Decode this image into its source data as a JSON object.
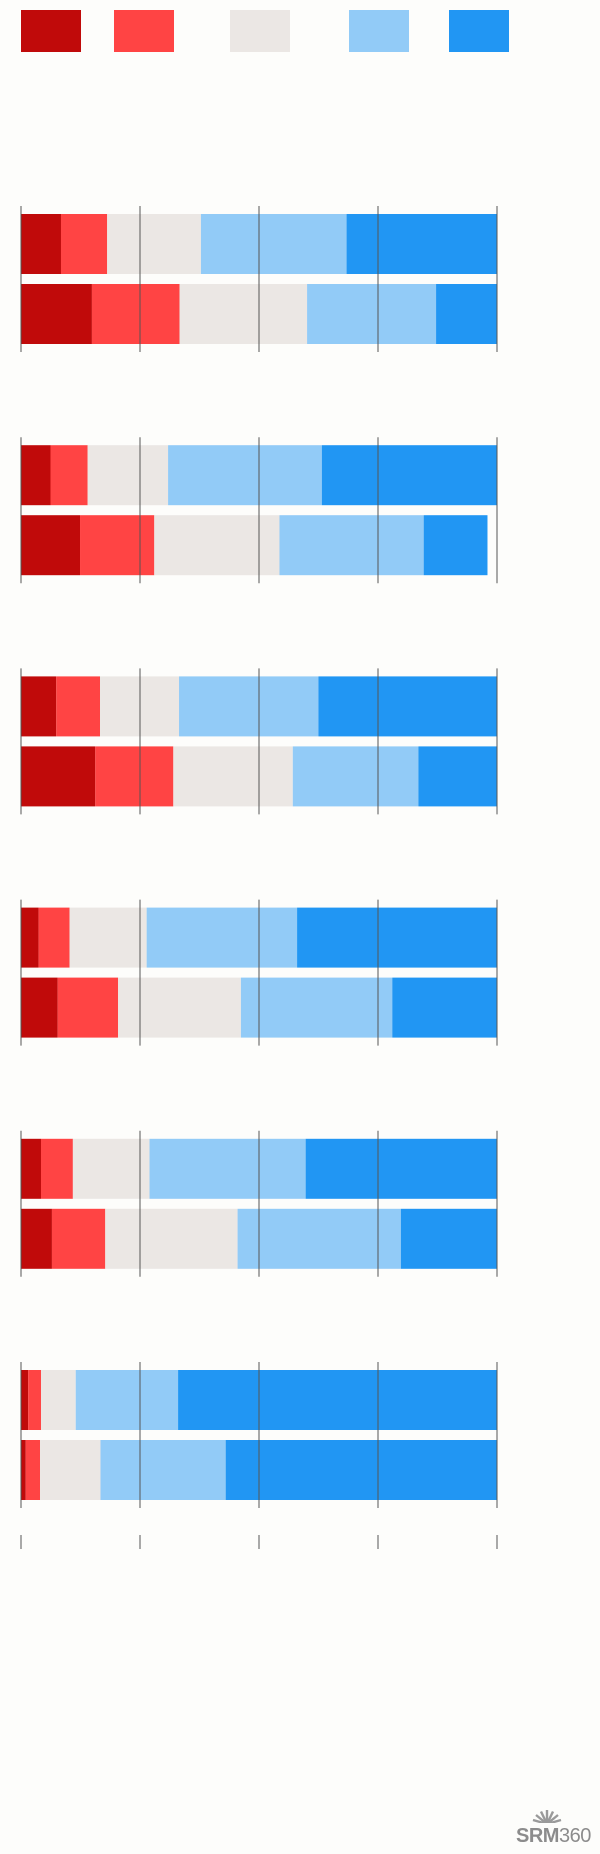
{
  "chart_data": {
    "type": "bar",
    "orientation": "horizontal",
    "stacked": "100%",
    "title": "",
    "xlabel": "",
    "ylabel": "",
    "xlim": [
      0,
      100
    ],
    "grid": true,
    "legend": "top",
    "categories_per_group": 2,
    "series": [
      {
        "color": "#c00a0a"
      },
      {
        "color": "#ff4444"
      },
      {
        "color": "#ebe7e4"
      },
      {
        "color": "#92cbf7"
      },
      {
        "color": "#2196f3"
      }
    ],
    "groups": [
      {
        "bars": [
          [
            8.4,
            9.7,
            19.7,
            30.6,
            31.6
          ],
          [
            14.9,
            18.4,
            26.8,
            27.1,
            12.8
          ]
        ]
      },
      {
        "bars": [
          [
            6.2,
            7.8,
            16.9,
            32.3,
            36.8
          ],
          [
            12.4,
            15.6,
            26.3,
            30.3,
            13.4
          ]
        ]
      },
      {
        "bars": [
          [
            7.4,
            9.2,
            16.6,
            29.3,
            37.5
          ],
          [
            15.6,
            16.4,
            25.1,
            26.4,
            16.5
          ]
        ]
      },
      {
        "bars": [
          [
            3.7,
            6.5,
            16.2,
            31.6,
            42.0
          ],
          [
            7.7,
            12.7,
            25.8,
            31.8,
            22.0
          ]
        ]
      },
      {
        "bars": [
          [
            4.2,
            6.7,
            16.1,
            32.8,
            40.2
          ],
          [
            6.5,
            11.2,
            27.8,
            34.3,
            20.2
          ]
        ]
      },
      {
        "bars": [
          [
            1.5,
            2.7,
            7.3,
            21.5,
            67.0
          ],
          [
            1.0,
            3.0,
            12.7,
            26.3,
            57.0
          ]
        ]
      }
    ]
  },
  "logo": {
    "text": "SRM",
    "number": "360"
  }
}
